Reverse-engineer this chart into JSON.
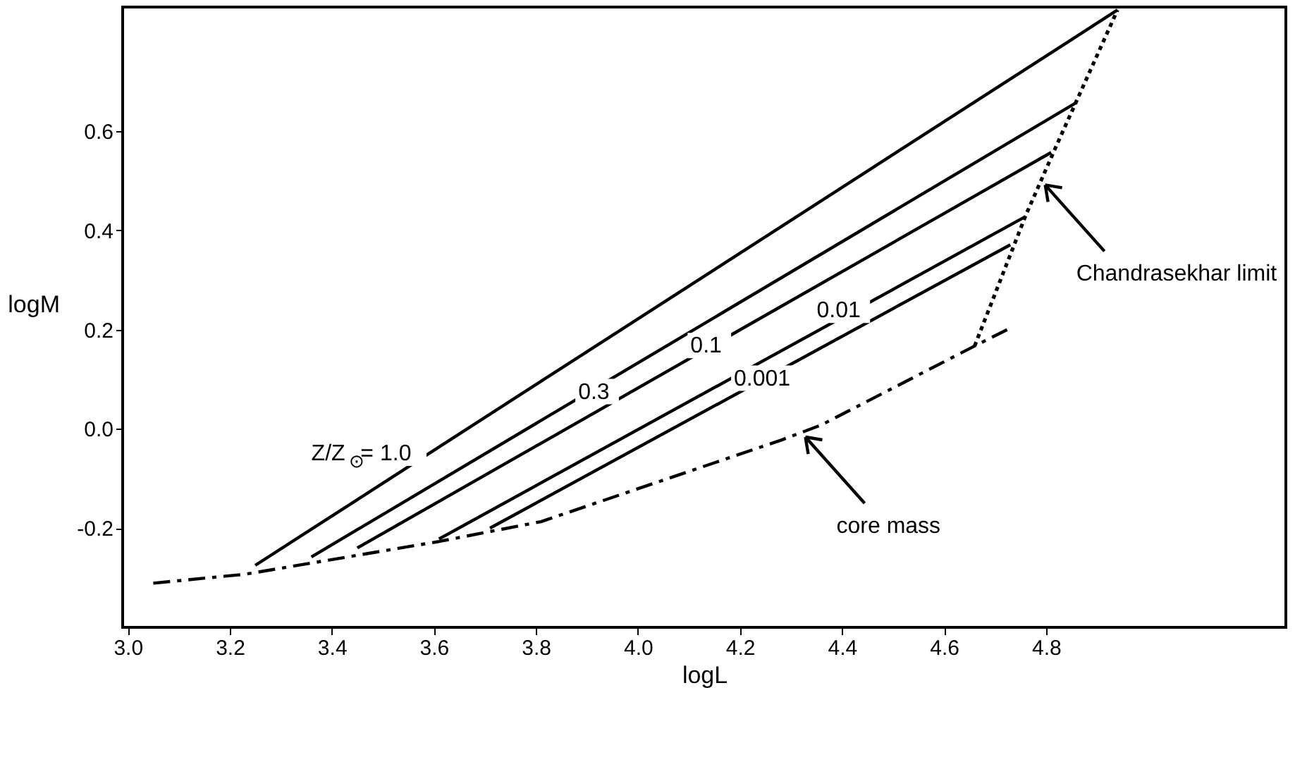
{
  "chart_data": {
    "type": "line",
    "xlabel": "logL",
    "ylabel": "logM",
    "xlim": [
      2.99,
      5.27
    ],
    "ylim": [
      -0.4,
      0.85
    ],
    "xticks": [
      {
        "value": 3.0,
        "label": "3.0"
      },
      3.2,
      3.4,
      3.6,
      3.8,
      {
        "value": 4.0,
        "label": "4.0"
      },
      4.2,
      4.4,
      4.6,
      4.8
    ],
    "yticks": [
      -0.2,
      {
        "value": 0,
        "label": "0.0"
      },
      0.2,
      0.4,
      0.6
    ],
    "grid": false,
    "marker": "none",
    "series": [
      {
        "color": "#000000",
        "line_style": "solid",
        "x": [
          3.25,
          4.94
        ],
        "values": [
          -0.275,
          0.844
        ]
      },
      {
        "color": "#000000",
        "line_style": "solid",
        "x": [
          3.36,
          4.86
        ],
        "values": [
          -0.258,
          0.658
        ]
      },
      {
        "color": "#000000",
        "line_style": "solid",
        "x": [
          3.45,
          4.81
        ],
        "values": [
          -0.24,
          0.557
        ]
      },
      {
        "color": "#000000",
        "line_style": "solid",
        "x": [
          3.61,
          4.76
        ],
        "values": [
          -0.222,
          0.428
        ]
      },
      {
        "color": "#000000",
        "line_style": "solid",
        "x": [
          3.71,
          4.73
        ],
        "values": [
          -0.2,
          0.371
        ]
      },
      {
        "color": "#000000",
        "line_style": "dashed",
        "x": [
          3.05,
          3.23,
          3.61,
          3.81,
          4.28,
          4.36,
          4.66,
          4.73
        ],
        "values": [
          -0.311,
          -0.293,
          -0.227,
          -0.187,
          -0.023,
          0.008,
          0.167,
          0.203
        ]
      },
      {
        "color": "#000000",
        "line_style": "dotted",
        "x": [
          4.66,
          4.76,
          4.82,
          4.94
        ],
        "values": [
          0.167,
          0.43,
          0.57,
          0.844
        ]
      }
    ],
    "annotations": [
      {
        "text": "Z/Z$_{⊙}$= 1.0",
        "x": 3.58,
        "y": -0.049
      },
      {
        "text": "0.3",
        "x": 3.92,
        "y": 0.075
      },
      {
        "text": "0.1",
        "x": 4.14,
        "y": 0.168
      },
      {
        "text": "0.01",
        "x": 4.4,
        "y": 0.239
      },
      {
        "text": "0.001",
        "x": 4.25,
        "y": 0.102
      },
      {
        "text": "core mass",
        "x": 4.32,
        "y": -0.008
      },
      {
        "text": "Chandrasekhar limit",
        "x": 4.79,
        "y": 0.5
      }
    ]
  }
}
